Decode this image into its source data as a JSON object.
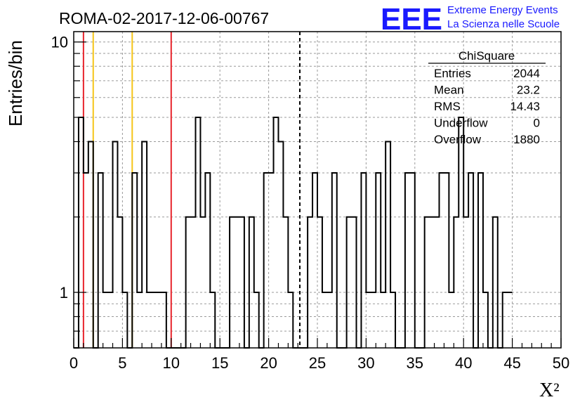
{
  "chart_data": {
    "type": "histogram",
    "title": "ROMA-02-2017-12-06-00767",
    "xlabel": "X²",
    "ylabel": "Entries/bin",
    "xlim": [
      0,
      50
    ],
    "ylim": [
      0.6,
      11
    ],
    "yscale": "log",
    "grid": true,
    "bin_width": 0.5,
    "x_ticks": [
      0,
      5,
      10,
      15,
      20,
      25,
      30,
      35,
      40,
      45,
      50
    ],
    "y_ticks": [
      1,
      10
    ],
    "values": [
      0,
      5,
      3,
      4,
      0,
      3,
      1,
      1,
      4,
      2,
      1,
      0,
      3,
      1,
      4,
      1,
      1,
      1,
      1,
      0,
      0,
      0,
      0,
      2,
      2,
      5,
      2,
      3,
      1,
      0,
      0,
      0,
      2,
      2,
      2,
      0,
      2,
      1,
      0,
      3,
      3,
      5,
      4,
      2,
      1,
      0,
      0,
      0,
      2,
      3,
      2,
      1,
      1,
      3,
      0,
      0,
      2,
      2,
      0,
      3,
      1,
      1,
      3,
      1,
      4,
      1,
      0,
      0,
      3,
      3,
      0,
      0,
      2,
      2,
      2,
      3,
      3,
      1,
      2,
      5,
      2,
      3,
      0,
      3,
      1,
      0,
      2,
      0,
      1,
      1
    ],
    "vertical_lines": [
      {
        "x": 1,
        "color": "#e8242c",
        "style": "solid"
      },
      {
        "x": 2,
        "color": "#f5c518",
        "style": "solid"
      },
      {
        "x": 6,
        "color": "#f5c518",
        "style": "solid"
      },
      {
        "x": 10,
        "color": "#e8242c",
        "style": "solid"
      },
      {
        "x": 23.2,
        "color": "#000000",
        "style": "dashed"
      }
    ],
    "stats_box": {
      "title": "ChiSquare",
      "rows": [
        {
          "label": "Entries",
          "value": "2044"
        },
        {
          "label": "Mean",
          "value": "23.2"
        },
        {
          "label": "RMS",
          "value": "14.43"
        },
        {
          "label": "Underflow",
          "value": "0"
        },
        {
          "label": "Overflow",
          "value": "1880"
        }
      ]
    }
  },
  "logo": {
    "mark": "EEE",
    "line1": "Extreme Energy Events",
    "line2": "La Scienza nelle Scuole",
    "color": "#1a1aff"
  }
}
